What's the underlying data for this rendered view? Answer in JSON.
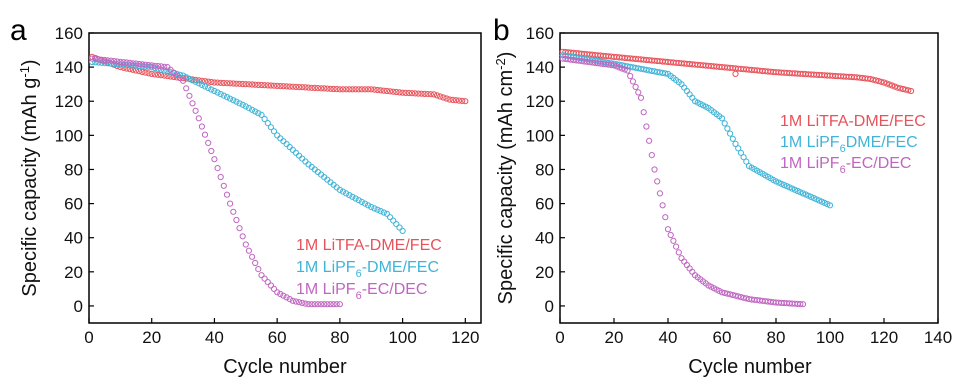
{
  "chart_data": [
    {
      "panel": "a",
      "type": "scatter",
      "xlabel": "Cycle number",
      "ylabel": "Specific capacity (mAh g",
      "ylabel_sup": "-1",
      "ylabel_end": ")",
      "xlim": [
        0,
        125
      ],
      "ylim": [
        -10,
        160
      ],
      "xticks": [
        0,
        20,
        40,
        60,
        80,
        100,
        120
      ],
      "yticks": [
        0,
        20,
        40,
        60,
        80,
        100,
        120,
        140,
        160
      ],
      "legend": "lower-right",
      "series": [
        {
          "name": "1M LiTFA-DME/FEC",
          "name_main": "1M LiTFA-DME/FEC",
          "name_sub": "",
          "name_rest": "",
          "color": "#e8525a",
          "points": [
            [
              1,
              146
            ],
            [
              10,
              140
            ],
            [
              20,
              136
            ],
            [
              40,
              131
            ],
            [
              60,
              129
            ],
            [
              80,
              127
            ],
            [
              90,
              127
            ],
            [
              100,
              125
            ],
            [
              110,
              124
            ],
            [
              115,
              121
            ],
            [
              120,
              120
            ]
          ]
        },
        {
          "name": "1M LiPF6-DME/FEC",
          "name_main": "1M LiPF",
          "name_sub": "6",
          "name_rest": "-DME/FEC",
          "color": "#40b4d8",
          "points": [
            [
              1,
              143
            ],
            [
              20,
              140
            ],
            [
              30,
              135
            ],
            [
              40,
              126
            ],
            [
              50,
              117
            ],
            [
              55,
              112
            ],
            [
              60,
              100
            ],
            [
              70,
              83
            ],
            [
              80,
              68
            ],
            [
              90,
              58
            ],
            [
              95,
              54
            ],
            [
              100,
              44
            ]
          ]
        },
        {
          "name": "1M LiPF6-EC/DEC",
          "name_main": "1M LiPF",
          "name_sub": "6",
          "name_rest": "-EC/DEC",
          "color": "#c066c2",
          "points": [
            [
              1,
              145
            ],
            [
              20,
              141
            ],
            [
              25,
              140
            ],
            [
              30,
              132
            ],
            [
              35,
              110
            ],
            [
              40,
              86
            ],
            [
              45,
              60
            ],
            [
              50,
              36
            ],
            [
              55,
              18
            ],
            [
              60,
              8
            ],
            [
              65,
              3
            ],
            [
              70,
              1
            ],
            [
              80,
              1
            ]
          ]
        }
      ]
    },
    {
      "panel": "b",
      "type": "scatter",
      "xlabel": "Cycle number",
      "ylabel": "Specific capacity (mAh cm",
      "ylabel_sup": "-2",
      "ylabel_end": ")",
      "xlim": [
        0,
        140
      ],
      "ylim": [
        -10,
        160
      ],
      "xticks": [
        0,
        20,
        40,
        60,
        80,
        100,
        120,
        140
      ],
      "yticks": [
        0,
        20,
        40,
        60,
        80,
        100,
        120,
        140,
        160
      ],
      "legend": "right",
      "series": [
        {
          "name": "1M LiTFA-DME/FEC",
          "name_main": "1M LiTFA-DME/FEC",
          "name_sub": "",
          "name_rest": "",
          "color": "#e8525a",
          "points": [
            [
              1,
              149
            ],
            [
              20,
              146
            ],
            [
              40,
              143
            ],
            [
              60,
              140
            ],
            [
              80,
              137
            ],
            [
              100,
              135
            ],
            [
              110,
              134
            ],
            [
              115,
              133
            ],
            [
              120,
              131
            ],
            [
              125,
              128
            ],
            [
              130,
              126
            ]
          ],
          "outliers": [
            [
              65,
              136
            ]
          ]
        },
        {
          "name": "1M LiPF6-DME/FEC",
          "name_main": "1M LiPF",
          "name_sub": "6",
          "name_rest": "DME/FEC",
          "color": "#40b4d8",
          "points": [
            [
              1,
              147
            ],
            [
              20,
              142
            ],
            [
              40,
              136
            ],
            [
              45,
              130
            ],
            [
              50,
              120
            ],
            [
              55,
              116
            ],
            [
              60,
              110
            ],
            [
              65,
              95
            ],
            [
              70,
              82
            ],
            [
              80,
              73
            ],
            [
              90,
              66
            ],
            [
              100,
              59
            ]
          ]
        },
        {
          "name": "1M LiPF6-EC/DEC",
          "name_main": "1M LiPF",
          "name_sub": "6",
          "name_rest": "-EC/DEC",
          "color": "#c066c2",
          "points": [
            [
              1,
              145
            ],
            [
              20,
              141
            ],
            [
              25,
              138
            ],
            [
              30,
              122
            ],
            [
              35,
              80
            ],
            [
              40,
              45
            ],
            [
              45,
              28
            ],
            [
              50,
              18
            ],
            [
              55,
              12
            ],
            [
              60,
              8
            ],
            [
              70,
              4
            ],
            [
              80,
              2
            ],
            [
              90,
              1
            ]
          ]
        }
      ]
    }
  ]
}
